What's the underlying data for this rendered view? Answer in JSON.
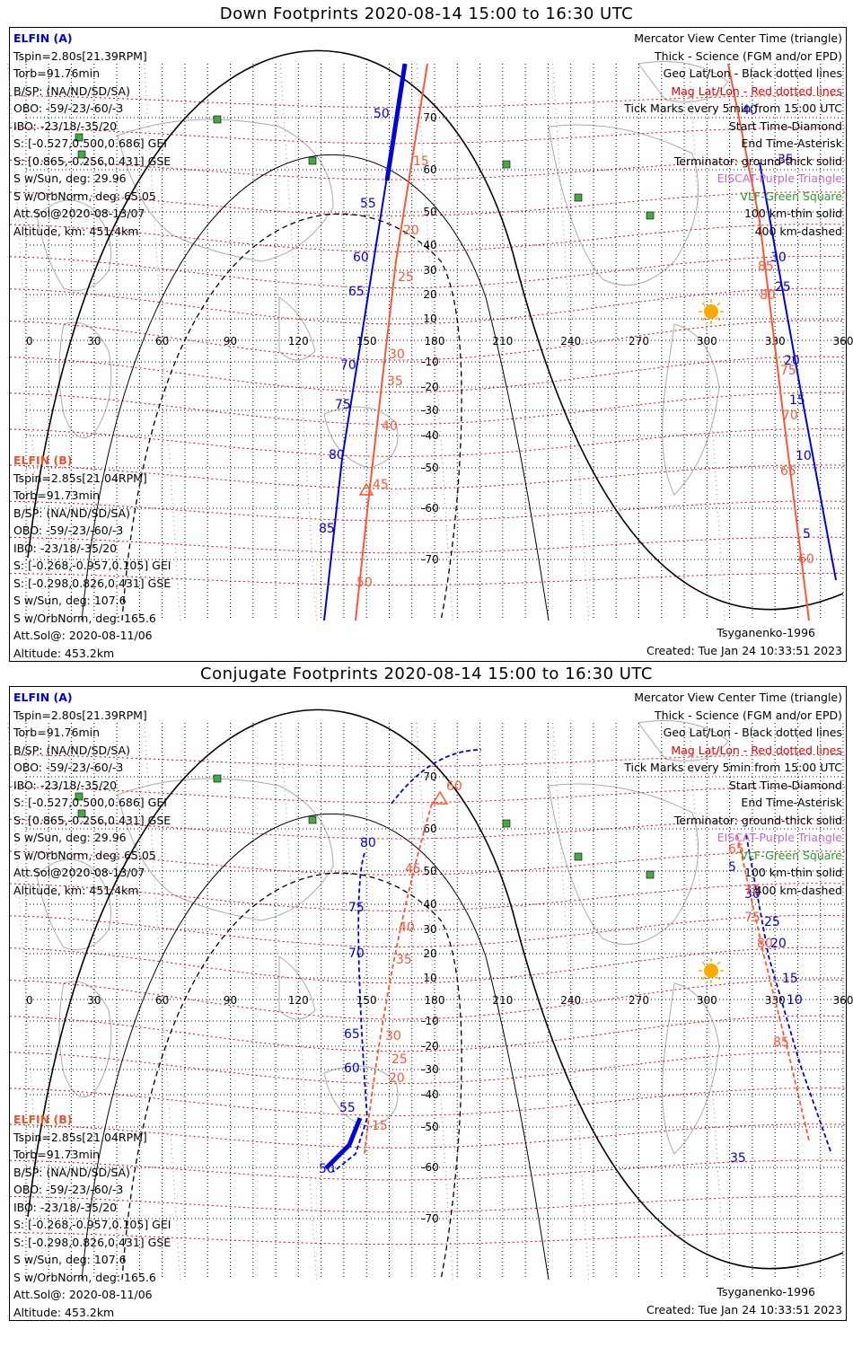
{
  "titles": {
    "down": "Down Footprints 2020-08-14 15:00 to 16:30 UTC",
    "conjugate": "Conjugate Footprints 2020-08-14 15:00 to 16:30 UTC"
  },
  "elfin_a": {
    "header": "ELFIN (A)",
    "lines": [
      "Tspin=2.80s[21.39RPM]",
      "Torb=91.76min",
      "B/SP: (NA/ND/SD/SA)",
      "OBO: -59/-23/-60/-3",
      "IBO: -23/18/-35/20",
      "S: [-0.527,0.500,0.686] GEI",
      "S: [0.865,-0.256,0.431] GSE",
      "S w/Sun, deg: 29.96",
      "S w/OrbNorm, deg: 65.05",
      "Att.Sol@2020-08-13/07",
      "Altitude, km: 451.4km"
    ]
  },
  "elfin_b": {
    "header": "ELFIN (B)",
    "lines": [
      "Tspin=2.85s[21.04RPM]",
      "Torb=91.73min",
      "B/SP: (NA/ND/SD/SA)",
      "OBO: -59/-23/-60/-3",
      "IBO: -23/18/-35/20",
      "S: [-0.268,-0.957,0.105] GEI",
      "S: [-0.298,0.826,0.431] GSE",
      "S w/Sun, deg: 107.6",
      "S w/OrbNorm, deg: 165.6",
      "Att.Sol@: 2020-08-11/06",
      "Altitude: 453.2km"
    ]
  },
  "legend": {
    "l1": "Mercator View Center Time (triangle)",
    "l2": "Thick - Science (FGM and/or EPD)",
    "l3": "Geo Lat/Lon - Black dotted lines",
    "l4": "Mag Lat/Lon - Red dotted lines",
    "l5": "Tick Marks every 5min from 15:00 UTC",
    "l6": "Start Time-Diamond",
    "l7": "End Time-Asterisk",
    "l8": "Terminator: ground-thick solid",
    "l9": "EISCAT-Purple Triangle",
    "l10": "VLF-Green Square",
    "l11": "100 km-thin solid",
    "l12": "400 km-dashed"
  },
  "footer": {
    "model": "Tsyganenko-1996",
    "created": "Created: Tue Jan 24 10:33:51 2023"
  },
  "axes": {
    "lon_ticks": [
      "0",
      "30",
      "60",
      "90",
      "120",
      "150",
      "180",
      "210",
      "240",
      "270",
      "300",
      "330",
      "360"
    ],
    "lat_ticks": [
      "70",
      "60",
      "50",
      "40",
      "30",
      "20",
      "10",
      "-10",
      "-20",
      "-30",
      "-40",
      "-50",
      "-60",
      "-70"
    ]
  },
  "colors": {
    "elfin_a": "#0000dd",
    "elfin_b": "#ff5533",
    "geo_grid": "#000000",
    "mag_grid": "#ee0000",
    "coast": "#aaaaaa",
    "vlf": "#44aa44",
    "eiscat": "#cc66cc",
    "sun": "#ffaa00"
  },
  "footprints": {
    "down": {
      "a_ticks": [
        "50",
        "55",
        "60",
        "65",
        "70",
        "75",
        "80",
        "85",
        "5",
        "10",
        "15",
        "20",
        "25",
        "30",
        "35",
        "40"
      ],
      "b_ticks": [
        "15",
        "20",
        "25",
        "30",
        "35",
        "40",
        "45",
        "50",
        "60",
        "65",
        "70",
        "75",
        "80",
        "85"
      ]
    },
    "conjugate": {
      "a_ticks": [
        "50",
        "55",
        "60",
        "65",
        "70",
        "75",
        "80",
        "5",
        "10",
        "15",
        "20",
        "25",
        "30",
        "35"
      ],
      "b_ticks": [
        "15",
        "20",
        "25",
        "30",
        "35",
        "40",
        "45",
        "60",
        "65",
        "70",
        "75",
        "80",
        "85"
      ]
    }
  }
}
